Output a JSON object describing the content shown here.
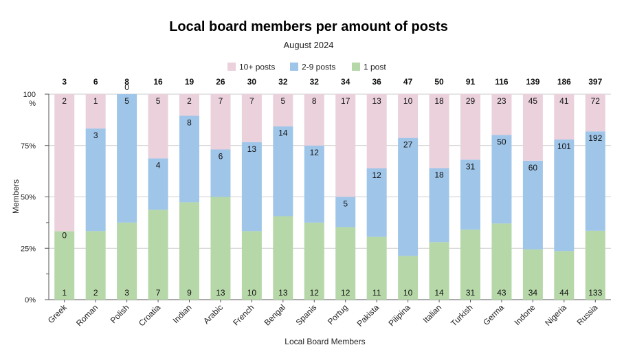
{
  "chart_data": {
    "type": "bar",
    "stacked": "percent",
    "title": "Local board members per amount of posts",
    "subtitle": "August 2024",
    "xlabel": "Local Board Members",
    "ylabel": "Members",
    "y_ticks": [
      "0%",
      "25%",
      "50%",
      "75%",
      "100\n%"
    ],
    "legend_position": "top",
    "grid": true,
    "categories": [
      "Greek",
      "Roman",
      "Polish",
      "Croatia",
      "Indian",
      "Arabic",
      "French",
      "Bengal",
      "Spanis",
      "Portug",
      "Pakista",
      "Pilipina",
      "Italian",
      "Turkish",
      "Germa",
      "Indone",
      "Nigeria",
      "Russia"
    ],
    "totals": [
      3,
      6,
      8,
      16,
      19,
      26,
      30,
      32,
      32,
      34,
      36,
      47,
      50,
      91,
      116,
      139,
      186,
      397
    ],
    "series": [
      {
        "name": "1 post",
        "color": "#b6d7a8",
        "values": [
          1,
          2,
          3,
          7,
          9,
          13,
          10,
          13,
          12,
          12,
          11,
          10,
          14,
          31,
          43,
          34,
          44,
          133
        ]
      },
      {
        "name": "2-9 posts",
        "color": "#9fc5e8",
        "values": [
          0,
          3,
          5,
          4,
          8,
          6,
          13,
          14,
          12,
          5,
          12,
          27,
          18,
          31,
          50,
          60,
          101,
          192
        ]
      },
      {
        "name": "10+ posts",
        "color": "#ead1dc",
        "values": [
          2,
          1,
          0,
          5,
          2,
          7,
          7,
          5,
          8,
          17,
          13,
          10,
          18,
          29,
          23,
          45,
          41,
          72
        ]
      }
    ],
    "legend_order": [
      "10+ posts",
      "2-9 posts",
      "1 post"
    ]
  }
}
